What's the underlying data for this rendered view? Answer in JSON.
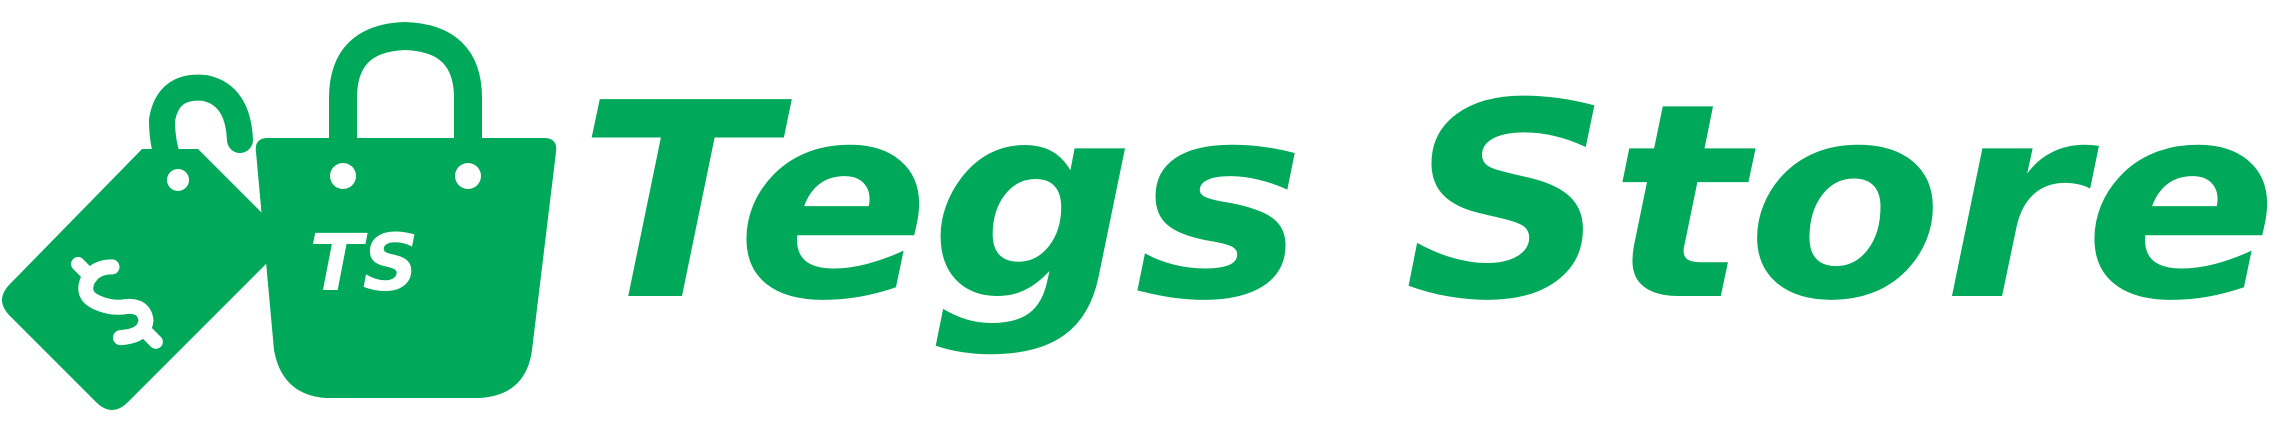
{
  "brand": {
    "name": "Tegs Store",
    "monogram": "TS",
    "color": "#00A859",
    "background": "#FFFFFF"
  },
  "icons": {
    "tag": "price-tag-icon",
    "bag": "shopping-bag-icon",
    "currency": "dollar-sign-icon"
  }
}
